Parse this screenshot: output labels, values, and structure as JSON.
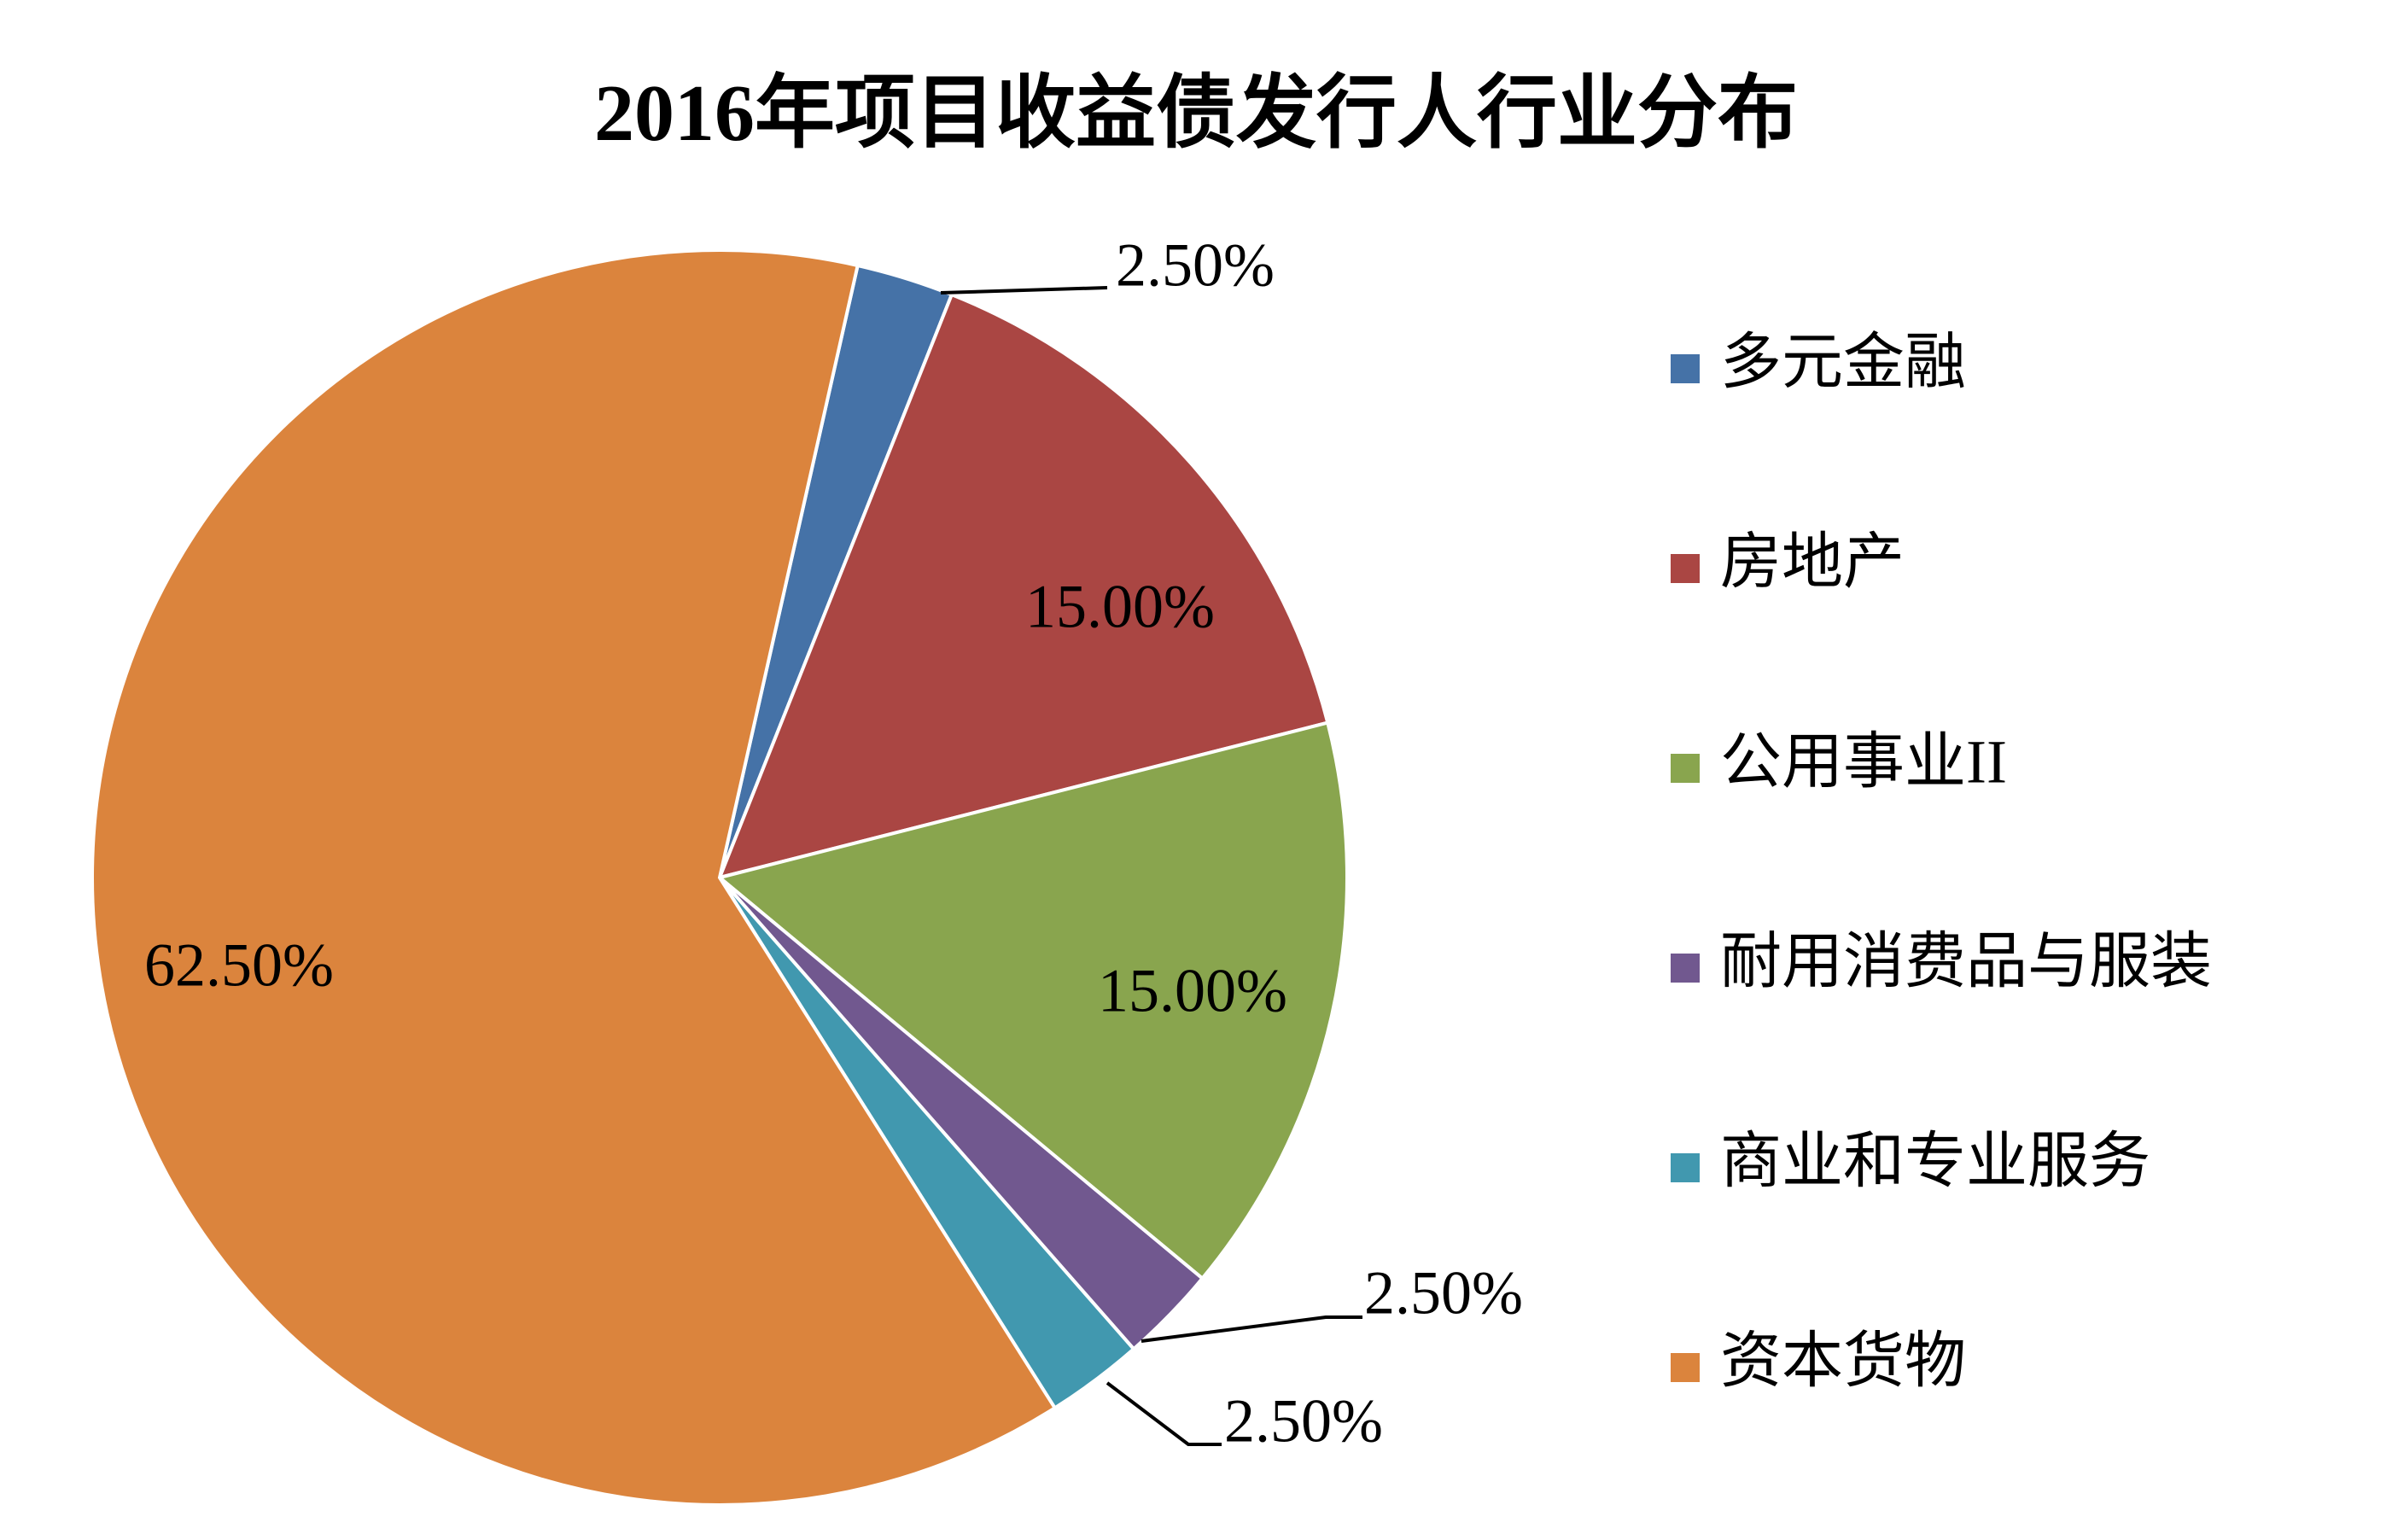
{
  "chart_data": {
    "type": "pie",
    "title": "2016年项目收益债发行人行业分布",
    "categories": [
      "多元金融",
      "房地产",
      "公用事业II",
      "耐用消费品与服装",
      "商业和专业服务",
      "资本货物"
    ],
    "values": [
      2.5,
      15.0,
      15.0,
      2.5,
      2.5,
      62.5
    ],
    "data_labels": [
      "2.50%",
      "15.00%",
      "15.00%",
      "2.50%",
      "2.50%",
      "62.50%"
    ],
    "colors": [
      "#4572A7",
      "#AA4643",
      "#89A54E",
      "#71588F",
      "#4198AF",
      "#DB843D"
    ],
    "legend_position": "right"
  }
}
